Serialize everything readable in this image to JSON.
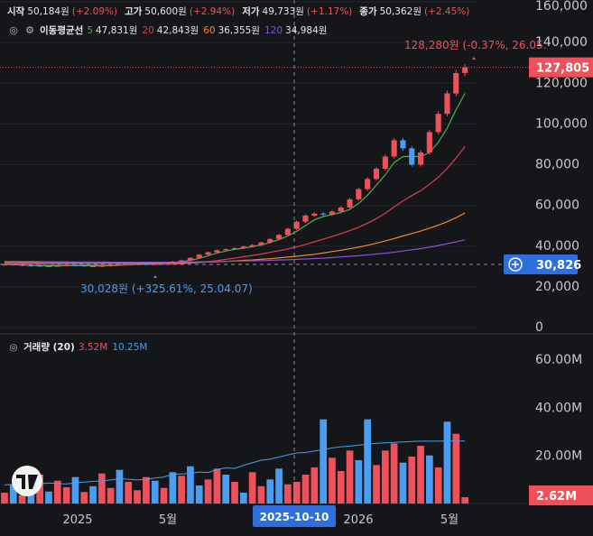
{
  "legend": {
    "open_label": "시작",
    "open": "50,184원",
    "open_pct": "(+2.09%)",
    "high_label": "고가",
    "high": "50,600원",
    "high_pct": "(+2.94%)",
    "low_label": "저가",
    "low": "49,733원",
    "low_pct": "(+1.17%)",
    "close_label": "종가",
    "close": "50,362원",
    "close_pct": "(+2.45%)"
  },
  "ma_legend": {
    "label": "이동평균선",
    "p5": "5",
    "v5": "47,831원",
    "p20": "20",
    "v20": "42,843원",
    "p60": "60",
    "v60": "36,355원",
    "p120": "120",
    "v120": "34,984원"
  },
  "volume_legend": {
    "label": "거래량 (20)",
    "v1": "3.52M",
    "v2": "10.25M"
  },
  "colors": {
    "up": "#f0505a",
    "down": "#4a9df0",
    "ma5": "#4caf50",
    "ma20": "#e5394b",
    "ma60": "#f5882a",
    "ma120": "#8a4fd6",
    "background": "#15161a"
  },
  "chart_data": [
    {
      "type": "candlestick",
      "price_axis": {
        "ticks": [
          "160,000",
          "140,000",
          "120,000",
          "100,000",
          "80,000",
          "60,000",
          "40,000",
          "20,000",
          "0"
        ],
        "ylim": [
          0,
          160000
        ]
      },
      "time_axis": {
        "ticks": [
          "2025",
          "5월",
          "2026",
          "5월"
        ],
        "crosshair_label": "2025-10-10"
      },
      "last_price_label": "127,805",
      "crosshair_price_label": "30,826",
      "high_annotation": "128,280원 (-0.37%, 26.05.",
      "low_annotation": "30,028원 (+325.61%, 25.04.07)",
      "close_series": [
        31000,
        30800,
        30500,
        30400,
        30200,
        30100,
        30300,
        30600,
        30500,
        30200,
        30000,
        30300,
        30700,
        31000,
        31200,
        31500,
        31300,
        31600,
        31900,
        32400,
        33000,
        34200,
        35800,
        37000,
        38000,
        38500,
        39000,
        39800,
        40500,
        41800,
        43500,
        45500,
        48500,
        52000,
        55000,
        56000,
        55500,
        57000,
        59000,
        63000,
        68000,
        73000,
        78000,
        84000,
        92000,
        88000,
        80000,
        86000,
        96000,
        105000,
        115000,
        125000,
        127805
      ],
      "series": [
        {
          "name": "5",
          "values": [
            31000,
            30900,
            30700,
            30500,
            30400,
            30300,
            30300,
            30400,
            30500,
            30400,
            30300,
            30300,
            30400,
            30600,
            30900,
            31200,
            31300,
            31400,
            31600,
            31900,
            32300,
            33000,
            34000,
            35300,
            36600,
            37600,
            38400,
            39000,
            39700,
            40600,
            41800,
            43200,
            45000,
            47300,
            50100,
            52900,
            54500,
            55500,
            56500,
            58000,
            61000,
            65000,
            70000,
            75000,
            81000,
            84000,
            84000,
            84000,
            86000,
            91000,
            98000,
            107000,
            115000
          ]
        },
        {
          "name": "20",
          "values": [
            31500,
            31400,
            31300,
            31200,
            31100,
            31000,
            30900,
            30900,
            30800,
            30800,
            30700,
            30700,
            30700,
            30800,
            30800,
            30900,
            31000,
            31000,
            31100,
            31200,
            31400,
            31700,
            32000,
            32400,
            32900,
            33500,
            34100,
            34800,
            35400,
            36100,
            36900,
            37700,
            38600,
            39600,
            40800,
            42100,
            43400,
            44700,
            46100,
            47600,
            49300,
            51300,
            53500,
            56100,
            59200,
            62200,
            64800,
            67300,
            70300,
            73900,
            78200,
            83300,
            88900
          ]
        },
        {
          "name": "60",
          "values": [
            32000,
            32000,
            31900,
            31900,
            31800,
            31800,
            31700,
            31700,
            31700,
            31600,
            31600,
            31600,
            31600,
            31600,
            31600,
            31600,
            31600,
            31700,
            31700,
            31800,
            31800,
            31900,
            32000,
            32200,
            32300,
            32500,
            32700,
            33000,
            33200,
            33500,
            33800,
            34200,
            34600,
            35000,
            35500,
            36000,
            36600,
            37300,
            38000,
            38700,
            39500,
            40400,
            41400,
            42500,
            43700,
            45000,
            46200,
            47400,
            48800,
            50300,
            52000,
            54000,
            56300
          ]
        },
        {
          "name": "120",
          "values": [
            32500,
            32500,
            32400,
            32400,
            32400,
            32300,
            32300,
            32300,
            32200,
            32200,
            32200,
            32200,
            32100,
            32100,
            32100,
            32100,
            32100,
            32100,
            32100,
            32100,
            32200,
            32200,
            32300,
            32300,
            32400,
            32500,
            32600,
            32700,
            32800,
            32900,
            33000,
            33200,
            33300,
            33500,
            33700,
            33900,
            34100,
            34400,
            34700,
            35000,
            35300,
            35700,
            36100,
            36500,
            37000,
            37600,
            38200,
            38800,
            39500,
            40300,
            41200,
            42100,
            43100
          ]
        }
      ]
    },
    {
      "type": "bar",
      "name": "volume",
      "yaxis_ticks": [
        "60.00M",
        "40.00M",
        "20.00M"
      ],
      "ylim": [
        0,
        66000000
      ],
      "last_volume_label": "2.62M",
      "values": [
        4500000.0,
        8000000.0,
        3500000.0,
        6000000.0,
        12000000.0,
        5000000.0,
        9500000.0,
        6800000.0,
        11000000.0,
        4800000.0,
        7200000.0,
        12500000.0,
        6500000.0,
        14000000.0,
        9000000.0,
        5500000.0,
        11000000.0,
        9500000.0,
        6500000.0,
        13000000.0,
        11500000.0,
        15500000.0,
        7500000.0,
        10000000.0,
        14500000.0,
        12000000.0,
        9000000.0,
        4500000.0,
        13000000.0,
        7200000.0,
        10000000.0,
        14500000.0,
        8000000.0,
        9000000.0,
        12000000.0,
        15000000.0,
        35000000.0,
        19000000.0,
        13500000.0,
        22000000.0,
        18000000.0,
        35000000.0,
        16000000.0,
        22000000.0,
        25000000.0,
        17000000.0,
        19500000.0,
        24000000.0,
        20000000.0,
        15000000.0,
        34000000.0,
        29000000.0,
        2620000.0
      ],
      "up": [
        true,
        false,
        true,
        false,
        true,
        false,
        true,
        true,
        false,
        true,
        false,
        true,
        true,
        false,
        true,
        true,
        true,
        false,
        true,
        false,
        true,
        false,
        false,
        true,
        true,
        false,
        true,
        false,
        true,
        true,
        false,
        false,
        true,
        true,
        true,
        true,
        false,
        true,
        true,
        true,
        false,
        false,
        true,
        true,
        true,
        false,
        true,
        true,
        false,
        true,
        false,
        true,
        true
      ],
      "ma20": [
        7800000.0,
        7900000.0,
        8000000.0,
        7800000.0,
        8200000.0,
        8500000.0,
        8300000.0,
        8100000.0,
        8600000.0,
        8900000.0,
        9200000.0,
        9400000.0,
        9800000.0,
        10300000.0,
        10100000.0,
        9800000.0,
        10000000.0,
        10600000.0,
        11000000.0,
        12200000.0,
        12300000.0,
        12500000.0,
        13100000.0,
        12900000.0,
        14100000.0,
        14800000.0,
        14600000.0,
        15900000.0,
        16900000.0,
        18000000.0,
        18400000.0,
        19300000.0,
        20200000.0,
        21000000.0,
        21200000.0,
        21800000.0,
        22400000.0,
        23100000.0,
        23600000.0,
        23800000.0,
        24300000.0,
        24600000.0,
        25000000.0,
        25200000.0,
        25400000.0,
        25600000.0,
        25800000.0,
        25900000.0,
        25900000.0,
        25900000.0,
        26000000.0,
        26000000.0,
        26000000.0
      ]
    }
  ]
}
